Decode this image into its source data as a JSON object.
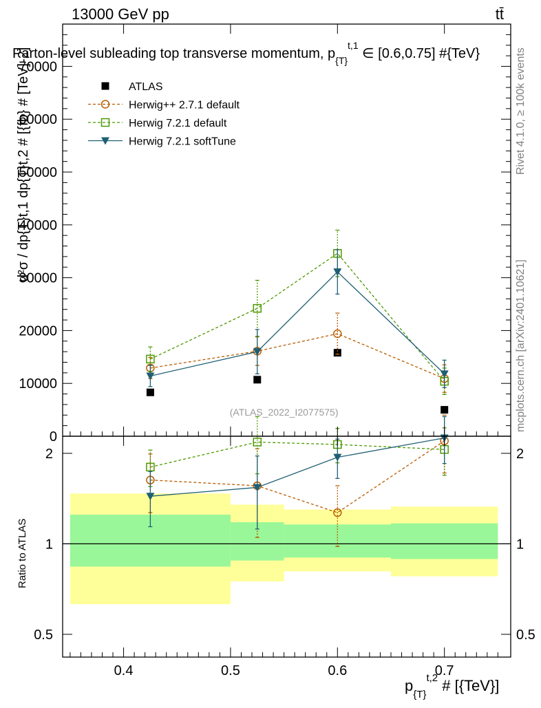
{
  "header": {
    "energy_label": "13000 GeV pp",
    "process_label": "tt̄"
  },
  "side_labels": {
    "rivet": "Rivet 4.1.0, ≥ 100k events",
    "mcplots": "mcplots.cern.ch [arXiv:2401.10621]"
  },
  "chart_data": [
    {
      "type": "scatter",
      "panel": "main",
      "title": "Parton-level subleading top transverse momentum, p_{T}^{t,1} ∈ [0.6,0.75] #{TeV}",
      "title_parts": {
        "main": "Parton-level subleading top transverse momentum, p",
        "sub": "{T}",
        "sup": "t,1",
        "tail": "∈ [0.6,0.75] #{TeV}"
      },
      "ylabel": "d²σ / dp_{T}^{t,1} dp_{T}^{t,2} # [{fb} # {TeV}^{-2}]",
      "ylabel_text": "d²σ / dp{T}t,1 dp{T}t,2 # [{fb} # [TeV]-2]",
      "xlim": [
        0.343,
        0.762
      ],
      "ylim": [
        0,
        78000
      ],
      "yticks": [
        0,
        10000,
        20000,
        30000,
        40000,
        50000,
        60000,
        70000
      ],
      "ytick_labels": [
        "0",
        "10000",
        "20000",
        "30000",
        "40000",
        "50000",
        "60000",
        "70000"
      ],
      "watermark": "(ATLAS_2022_I2077575)",
      "legend_position": "top-left",
      "series": [
        {
          "name": "ATLAS",
          "color": "#000000",
          "marker": "filled-square",
          "line": "none",
          "x": [
            0.425,
            0.525,
            0.6,
            0.7
          ],
          "y": [
            8300,
            10700,
            15800,
            5000
          ],
          "err": [
            300,
            400,
            500,
            200
          ]
        },
        {
          "name": "Herwig++ 2.7.1 default",
          "color": "#b85c00",
          "marker": "open-circle",
          "line": "dashed",
          "x": [
            0.425,
            0.525,
            0.6,
            0.7
          ],
          "y": [
            12900,
            16100,
            19400,
            10900
          ],
          "err": [
            2000,
            2700,
            3900,
            2600
          ]
        },
        {
          "name": "Herwig 7.2.1 default",
          "color": "#4d9900",
          "marker": "open-square",
          "line": "dashed",
          "x": [
            0.425,
            0.525,
            0.6,
            0.7
          ],
          "y": [
            14600,
            24200,
            34600,
            10400
          ],
          "err": [
            2300,
            5300,
            4400,
            2500
          ]
        },
        {
          "name": "Herwig 7.2.1 softTune",
          "color": "#1f5f73",
          "marker": "filled-triangle-down",
          "line": "solid",
          "x": [
            0.425,
            0.525,
            0.6,
            0.7
          ],
          "y": [
            11400,
            16000,
            31100,
            11800
          ],
          "err": [
            2000,
            4200,
            4200,
            2600
          ]
        }
      ]
    },
    {
      "type": "scatter",
      "panel": "ratio",
      "ylabel": "Ratio to ATLAS",
      "xlabel": "p_{T}^{t,2} # [{TeV}]",
      "xlabel_parts": {
        "main": "p",
        "sub": "{T}",
        "sup": "t,2",
        "tail": "# [{TeV}]"
      },
      "xlim": [
        0.343,
        0.762
      ],
      "ylim": [
        0.42,
        2.28
      ],
      "yscale": "log",
      "yticks": [
        0.5,
        1,
        2
      ],
      "ytick_labels": [
        "0.5",
        "1",
        "2"
      ],
      "xticks": [
        0.4,
        0.5,
        0.6,
        0.7
      ],
      "xtick_labels": [
        "0.4",
        "0.5",
        "0.6",
        "0.7"
      ],
      "bands": [
        {
          "x0": 0.35,
          "x1": 0.5,
          "inner": [
            0.84,
            1.25
          ],
          "outer": [
            0.63,
            1.47
          ]
        },
        {
          "x0": 0.5,
          "x1": 0.55,
          "inner": [
            0.88,
            1.18
          ],
          "outer": [
            0.75,
            1.35
          ]
        },
        {
          "x0": 0.55,
          "x1": 0.65,
          "inner": [
            0.9,
            1.16
          ],
          "outer": [
            0.81,
            1.3
          ]
        },
        {
          "x0": 0.65,
          "x1": 0.75,
          "inner": [
            0.89,
            1.17
          ],
          "outer": [
            0.78,
            1.33
          ]
        }
      ],
      "band_colors": {
        "inner": "#99f799",
        "outer": "#ffff99"
      },
      "series": [
        {
          "name": "Herwig++ 2.7.1 default",
          "color": "#b85c00",
          "marker": "open-circle",
          "line": "dashed",
          "x": [
            0.425,
            0.525,
            0.6,
            0.7
          ],
          "y": [
            1.63,
            1.56,
            1.27,
            2.2
          ],
          "err": [
            0.36,
            0.51,
            0.29,
            0.48
          ]
        },
        {
          "name": "Herwig 7.2.1 default",
          "color": "#4d9900",
          "marker": "open-square",
          "line": "dashed",
          "x": [
            0.425,
            0.525,
            0.6,
            0.7
          ],
          "y": [
            1.8,
            2.18,
            2.14,
            2.06
          ],
          "err": [
            0.25,
            0.47,
            0.28,
            0.37
          ]
        },
        {
          "name": "Herwig 7.2.1 softTune",
          "color": "#1f5f73",
          "marker": "filled-triangle-down",
          "line": "solid",
          "x": [
            0.425,
            0.525,
            0.6,
            0.7
          ],
          "y": [
            1.44,
            1.54,
            1.94,
            2.25
          ],
          "err": [
            0.3,
            0.42,
            0.29,
            0.4
          ]
        }
      ]
    }
  ]
}
